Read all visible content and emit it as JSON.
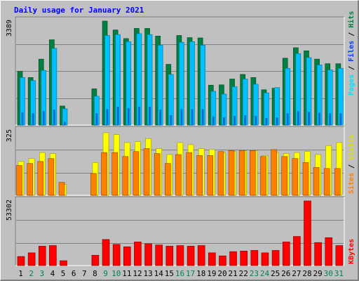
{
  "title": "Daily usage for January 2021",
  "colors": {
    "background": "#c0c0c0",
    "title": "#0000ff",
    "grid": "#808080",
    "hits": "#008040",
    "files": "#00c0ff",
    "pages": "#00e0ff",
    "visits": "#ffff00",
    "sites": "#ff8000",
    "kbytes": "#ff0000",
    "weekday_label": "#000000",
    "weekend_label": "#00805c"
  },
  "legend": {
    "pages": "Pages",
    "files": "Files",
    "hits": "Hits",
    "sites": "Sites",
    "visits": "Visits",
    "kbytes": "KBytes",
    "sep": "/"
  },
  "chart_data": {
    "type": "bar",
    "categories": [
      "1",
      "2",
      "3",
      "4",
      "5",
      "6",
      "7",
      "8",
      "9",
      "10",
      "11",
      "12",
      "13",
      "14",
      "15",
      "16",
      "17",
      "18",
      "19",
      "20",
      "21",
      "22",
      "23",
      "24",
      "25",
      "26",
      "27",
      "28",
      "29",
      "30",
      "31"
    ],
    "weekend_days": [
      "2",
      "3",
      "9",
      "10",
      "16",
      "17",
      "23",
      "24",
      "30",
      "31"
    ],
    "panels": [
      {
        "name": "hits-files-pages",
        "ymax_label": "3389",
        "ymax": 3389,
        "series": [
          {
            "name": "Hits",
            "values": [
              1750,
              1550,
              2150,
              2780,
              620,
              0,
              0,
              1180,
              3389,
              3100,
              2820,
              3150,
              3150,
              2900,
              1980,
              2920,
              2850,
              2840,
              1300,
              1310,
              1500,
              1650,
              1550,
              1150,
              1200,
              2180,
              2520,
              2420,
              2150,
              2000,
              2000
            ]
          },
          {
            "name": "Files",
            "values": [
              1550,
              1450,
              1780,
              2500,
              530,
              0,
              0,
              940,
              2920,
              2950,
              2720,
              2980,
              2950,
              2600,
              1650,
              2700,
              2720,
              2600,
              1100,
              1010,
              1250,
              1500,
              1330,
              1050,
              1220,
              1850,
              2330,
              2200,
              1960,
              1800,
              1850
            ]
          },
          {
            "name": "Pages",
            "values": [
              420,
              380,
              450,
              500,
              100,
              0,
              0,
              380,
              520,
              600,
              550,
              600,
              600,
              500,
              320,
              520,
              520,
              520,
              280,
              250,
              300,
              320,
              300,
              230,
              250,
              380,
              450,
              430,
              400,
              380,
              380
            ]
          }
        ]
      },
      {
        "name": "sites-visits",
        "ymax_label": "325",
        "ymax": 325,
        "series": [
          {
            "name": "Visits",
            "values": [
              170,
              185,
              215,
              210,
              55,
              0,
              0,
              165,
              315,
              305,
              265,
              270,
              285,
              235,
              205,
              265,
              255,
              235,
              230,
              215,
              220,
              225,
              225,
              200,
              215,
              210,
              215,
              220,
              205,
              250,
              265
            ]
          },
          {
            "name": "Sites",
            "values": [
              150,
              160,
              170,
              185,
              65,
              0,
              0,
              110,
              215,
              215,
              195,
              220,
              235,
              210,
              160,
              205,
              215,
              200,
              200,
              220,
              225,
              225,
              225,
              195,
              230,
              195,
              185,
              165,
              140,
              135,
              135
            ]
          }
        ]
      },
      {
        "name": "kbytes",
        "ymax_label": "53302",
        "ymax": 53302,
        "series": [
          {
            "name": "KBytes",
            "values": [
              7500,
              10500,
              16000,
              16500,
              4000,
              0,
              0,
              8500,
              21500,
              17500,
              15500,
              19500,
              18000,
              17000,
              16000,
              16500,
              16000,
              16500,
              10500,
              8000,
              11500,
              12000,
              12500,
              10500,
              12500,
              19500,
              24000,
              53302,
              19000,
              23000,
              16500
            ]
          }
        ]
      }
    ]
  }
}
